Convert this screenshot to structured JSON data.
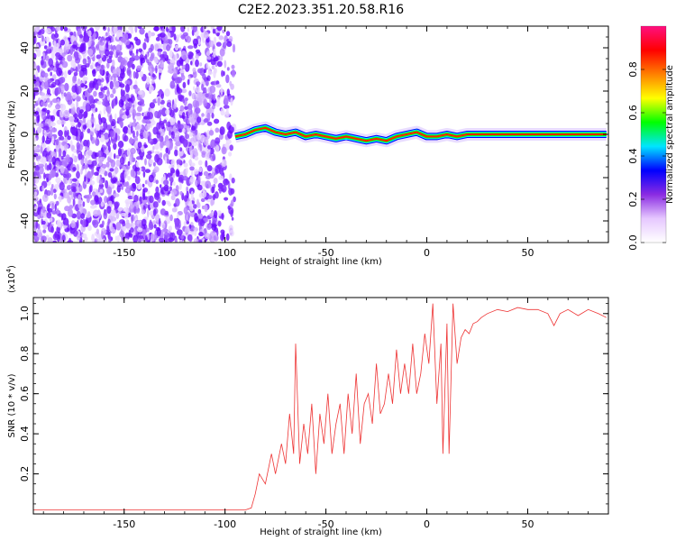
{
  "title": "C2E2.2023.351.20.58.R16",
  "chart_data": [
    {
      "type": "heatmap",
      "xlabel": "Height of straight line (km)",
      "ylabel": "Frequency (Hz)",
      "xlim": [
        -195,
        90
      ],
      "ylim": [
        -50,
        50
      ],
      "xticks": [
        -150,
        -100,
        -50,
        0,
        50
      ],
      "yticks": [
        -40,
        -20,
        0,
        20,
        40
      ],
      "colorbar": {
        "label": "Normalized spectral amplitude",
        "range": [
          0.0,
          1.0
        ],
        "ticks": [
          0.0,
          0.2,
          0.4,
          0.6,
          0.8
        ],
        "colors": [
          "#ffffff",
          "#e6c8ff",
          "#8a2be2",
          "#0000ff",
          "#00e5ff",
          "#00ff00",
          "#ffff00",
          "#ff8000",
          "#ff0000",
          "#ff1080"
        ]
      },
      "ridge": {
        "x": [
          -95,
          -90,
          -85,
          -80,
          -75,
          -70,
          -65,
          -60,
          -55,
          -50,
          -45,
          -40,
          -35,
          -30,
          -25,
          -20,
          -15,
          -10,
          -5,
          0,
          5,
          10,
          15,
          20,
          40,
          60,
          89
        ],
        "y": [
          -1,
          0,
          2,
          3,
          1,
          0,
          1,
          -1,
          0,
          -1,
          -2,
          -1,
          -2,
          -3,
          -2,
          -3,
          -1,
          0,
          1,
          -1,
          -1,
          0,
          -1,
          0,
          0,
          0,
          0
        ]
      }
    },
    {
      "type": "line",
      "xlabel": "Height of straight line (km)",
      "ylabel": "SNR (10 * v/v)",
      "scale_label": "(x10",
      "scale_exp": "4",
      "scale_close": ")",
      "xlim": [
        -195,
        90
      ],
      "ylim": [
        0,
        1.08
      ],
      "xticks": [
        -150,
        -100,
        -50,
        0,
        50
      ],
      "yticks": [
        0.2,
        0.4,
        0.6,
        0.8,
        1.0
      ],
      "ytick_labels": [
        "0.2",
        "0.4",
        "0.6",
        "0.8",
        "1.0"
      ],
      "series": [
        {
          "color": "#ee3333",
          "x": [
            -195,
            -170,
            -150,
            -130,
            -110,
            -100,
            -95,
            -90,
            -87,
            -85,
            -83,
            -80,
            -77,
            -75,
            -72,
            -70,
            -68,
            -66,
            -65,
            -63,
            -61,
            -59,
            -57,
            -55,
            -53,
            -51,
            -49,
            -47,
            -45,
            -43,
            -41,
            -39,
            -37,
            -35,
            -33,
            -31,
            -29,
            -27,
            -25,
            -23,
            -21,
            -19,
            -17,
            -15,
            -13,
            -11,
            -9,
            -7,
            -5,
            -3,
            -1,
            1,
            3,
            5,
            7,
            8,
            10,
            11,
            13,
            15,
            17,
            19,
            21,
            23,
            25,
            27,
            30,
            35,
            40,
            45,
            50,
            55,
            60,
            63,
            66,
            70,
            75,
            80,
            85,
            89
          ],
          "y": [
            0.02,
            0.02,
            0.02,
            0.02,
            0.02,
            0.02,
            0.02,
            0.02,
            0.03,
            0.1,
            0.2,
            0.15,
            0.3,
            0.2,
            0.35,
            0.25,
            0.5,
            0.3,
            0.85,
            0.25,
            0.45,
            0.3,
            0.55,
            0.2,
            0.5,
            0.35,
            0.6,
            0.3,
            0.45,
            0.55,
            0.3,
            0.6,
            0.4,
            0.7,
            0.35,
            0.55,
            0.6,
            0.45,
            0.75,
            0.5,
            0.55,
            0.7,
            0.55,
            0.82,
            0.6,
            0.75,
            0.6,
            0.85,
            0.6,
            0.7,
            0.9,
            0.75,
            1.05,
            0.55,
            0.85,
            0.3,
            0.95,
            0.3,
            1.05,
            0.75,
            0.88,
            0.92,
            0.9,
            0.95,
            0.96,
            0.98,
            1.0,
            1.02,
            1.01,
            1.03,
            1.02,
            1.02,
            1.0,
            0.94,
            1.0,
            1.02,
            0.99,
            1.02,
            1.0,
            0.98
          ]
        }
      ]
    }
  ]
}
